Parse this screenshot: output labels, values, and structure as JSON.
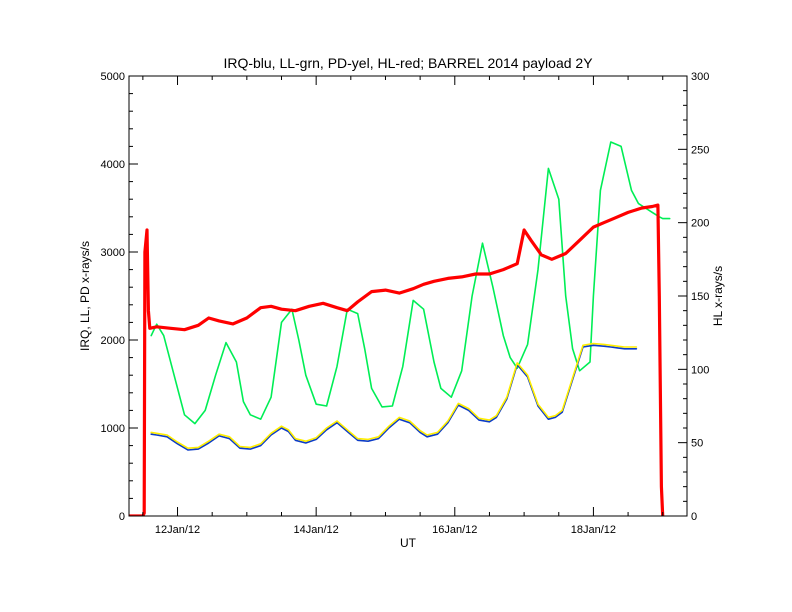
{
  "chart_data": {
    "type": "line",
    "title": "IRQ-blu, LL-grn, PD-yel, HL-red; BARREL 2014 payload 2Y",
    "xlabel": "UT",
    "ylabel_left": "IRQ, LL, PD x-rays/s",
    "ylabel_right": "HL x-rays/s",
    "x_tick_labels": [
      "12Jan/12",
      "14Jan/12",
      "16Jan/12",
      "18Jan/12"
    ],
    "x_tick_positions_days": [
      12,
      14,
      16,
      18
    ],
    "xlim_days": [
      11.3,
      19.35
    ],
    "ylim_left": [
      0,
      5000
    ],
    "ylim_right": [
      0,
      300
    ],
    "y_left_ticks": [
      "0",
      "1000",
      "2000",
      "3000",
      "4000",
      "5000"
    ],
    "y_right_ticks": [
      "0",
      "50",
      "100",
      "150",
      "200",
      "250",
      "300"
    ],
    "grid": false,
    "series": [
      {
        "name": "LL",
        "axis": "left",
        "color": "#00ee55",
        "x": [
          11.62,
          11.65,
          11.7,
          11.8,
          11.95,
          12.1,
          12.25,
          12.4,
          12.55,
          12.7,
          12.85,
          12.95,
          13.05,
          13.2,
          13.35,
          13.5,
          13.65,
          13.75,
          13.85,
          14.0,
          14.15,
          14.3,
          14.45,
          14.6,
          14.7,
          14.8,
          14.95,
          15.1,
          15.25,
          15.4,
          15.55,
          15.7,
          15.8,
          15.95,
          16.1,
          16.25,
          16.4,
          16.55,
          16.7,
          16.8,
          16.9,
          17.05,
          17.2,
          17.35,
          17.5,
          17.6,
          17.7,
          17.8,
          17.95,
          18.0,
          18.1,
          18.25,
          18.4,
          18.55,
          18.65,
          18.75,
          18.85,
          18.95,
          19.0,
          19.05,
          19.1
        ],
        "y": [
          2050,
          2100,
          2180,
          2050,
          1600,
          1150,
          1050,
          1200,
          1600,
          1970,
          1750,
          1300,
          1150,
          1100,
          1350,
          2200,
          2350,
          2000,
          1600,
          1270,
          1250,
          1700,
          2350,
          2300,
          1900,
          1450,
          1240,
          1250,
          1700,
          2450,
          2350,
          1750,
          1450,
          1350,
          1650,
          2500,
          3100,
          2600,
          2050,
          1800,
          1680,
          1950,
          2800,
          3950,
          3600,
          2500,
          1900,
          1650,
          1750,
          2500,
          3700,
          4250,
          4200,
          3700,
          3550,
          3500,
          3450,
          3400,
          3380,
          3380,
          3380
        ]
      },
      {
        "name": "IRQ",
        "axis": "left",
        "color": "#0b3bc8",
        "x": [
          11.62,
          11.7,
          11.85,
          12.0,
          12.15,
          12.3,
          12.45,
          12.6,
          12.75,
          12.9,
          13.05,
          13.2,
          13.35,
          13.5,
          13.6,
          13.7,
          13.85,
          14.0,
          14.15,
          14.3,
          14.45,
          14.6,
          14.75,
          14.9,
          15.05,
          15.2,
          15.35,
          15.5,
          15.6,
          15.75,
          15.9,
          16.05,
          16.2,
          16.35,
          16.5,
          16.6,
          16.75,
          16.9,
          17.05,
          17.2,
          17.35,
          17.45,
          17.55,
          17.7,
          17.85,
          18.0,
          18.15,
          18.25,
          18.35,
          18.45,
          18.55,
          18.62
        ],
        "y": [
          930,
          920,
          900,
          820,
          750,
          760,
          830,
          910,
          880,
          770,
          760,
          800,
          920,
          1000,
          960,
          860,
          830,
          870,
          980,
          1060,
          960,
          860,
          850,
          880,
          1000,
          1100,
          1060,
          950,
          900,
          930,
          1060,
          1260,
          1200,
          1090,
          1070,
          1120,
          1330,
          1720,
          1580,
          1250,
          1100,
          1120,
          1180,
          1550,
          1920,
          1940,
          1930,
          1920,
          1910,
          1900,
          1900,
          1900
        ]
      },
      {
        "name": "PD",
        "axis": "left",
        "color": "#ffee00",
        "x": [
          11.62,
          11.7,
          11.85,
          12.0,
          12.15,
          12.3,
          12.45,
          12.6,
          12.75,
          12.9,
          13.05,
          13.2,
          13.35,
          13.5,
          13.6,
          13.7,
          13.85,
          14.0,
          14.15,
          14.3,
          14.45,
          14.6,
          14.75,
          14.9,
          15.05,
          15.2,
          15.35,
          15.5,
          15.6,
          15.75,
          15.9,
          16.05,
          16.2,
          16.35,
          16.5,
          16.6,
          16.75,
          16.9,
          17.05,
          17.2,
          17.35,
          17.45,
          17.55,
          17.7,
          17.85,
          18.0,
          18.15,
          18.25,
          18.35,
          18.45,
          18.55,
          18.62
        ],
        "y": [
          950,
          940,
          920,
          840,
          770,
          780,
          850,
          930,
          900,
          790,
          780,
          820,
          940,
          1020,
          980,
          880,
          850,
          890,
          1000,
          1080,
          980,
          880,
          870,
          900,
          1020,
          1120,
          1080,
          970,
          920,
          950,
          1080,
          1280,
          1220,
          1110,
          1090,
          1140,
          1350,
          1740,
          1600,
          1270,
          1120,
          1140,
          1200,
          1570,
          1940,
          1960,
          1950,
          1940,
          1930,
          1920,
          1920,
          1920
        ]
      },
      {
        "name": "HL",
        "axis": "right",
        "color": "#ff0000",
        "x": [
          11.3,
          11.5,
          11.52,
          11.53,
          11.56,
          11.58,
          11.6,
          11.7,
          11.9,
          12.1,
          12.3,
          12.45,
          12.6,
          12.8,
          13.0,
          13.2,
          13.35,
          13.5,
          13.7,
          13.9,
          14.1,
          14.3,
          14.45,
          14.6,
          14.8,
          15.0,
          15.2,
          15.4,
          15.55,
          15.7,
          15.9,
          16.1,
          16.3,
          16.5,
          16.7,
          16.9,
          17.0,
          17.1,
          17.25,
          17.4,
          17.5,
          17.6,
          17.8,
          18.0,
          18.15,
          18.3,
          18.5,
          18.7,
          18.85,
          18.93,
          18.95,
          18.98,
          19.0
        ],
        "y": [
          0,
          0,
          2,
          180,
          195,
          140,
          128,
          129,
          128,
          127,
          130,
          135,
          133,
          131,
          135,
          142,
          143,
          141,
          140,
          143,
          145,
          142,
          140,
          146,
          153,
          154,
          152,
          155,
          158,
          160,
          162,
          163,
          165,
          165,
          168,
          172,
          195,
          188,
          178,
          175,
          177,
          179,
          188,
          197,
          200,
          203,
          207,
          210,
          211,
          212,
          150,
          20,
          0
        ]
      }
    ]
  }
}
